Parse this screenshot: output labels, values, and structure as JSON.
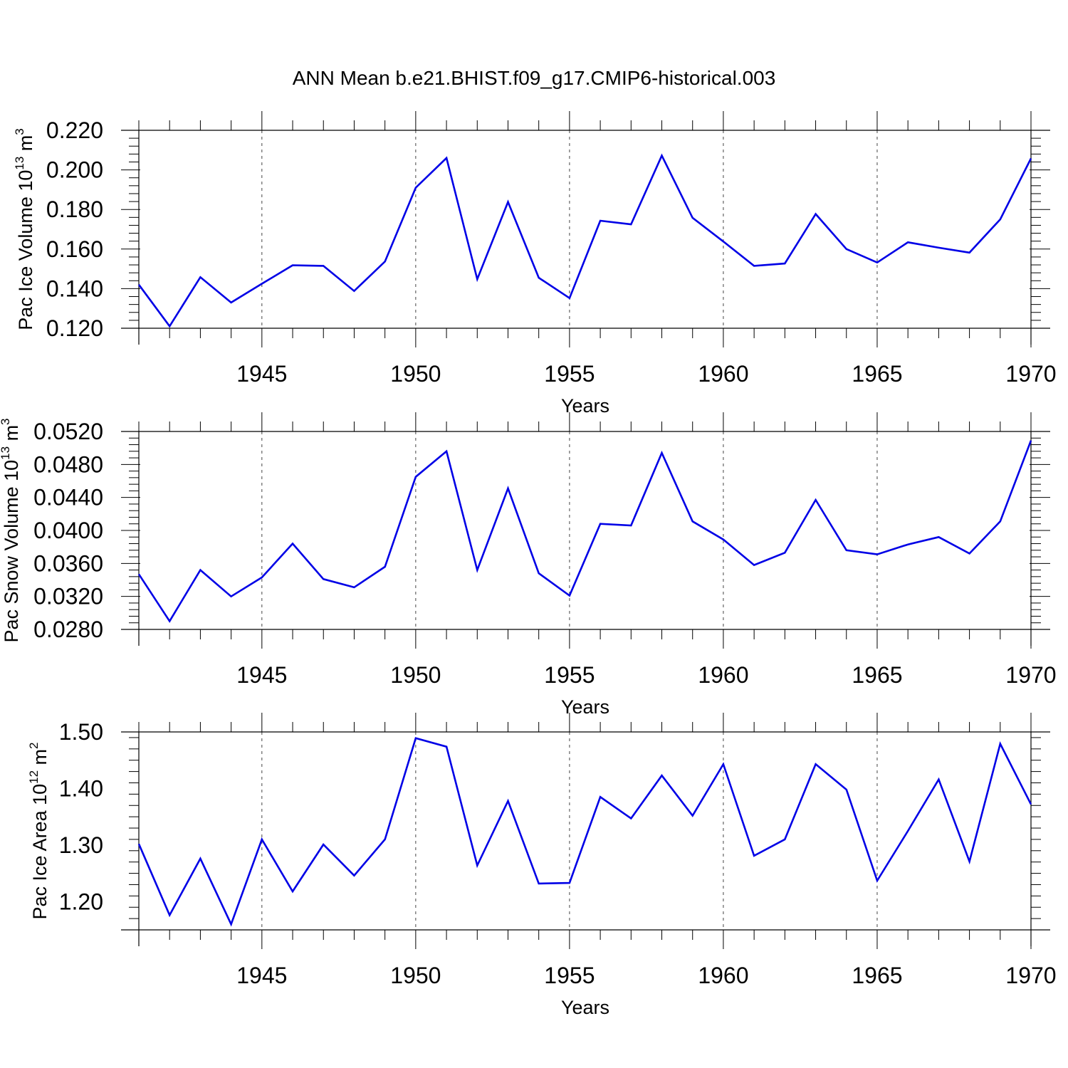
{
  "title": "ANN Mean b.e21.BHIST.f09_g17.CMIP6-historical.003",
  "colors": {
    "line": "#0000e6",
    "axis": "#000000",
    "grid": "#444444",
    "background": "#ffffff"
  },
  "chart_data": [
    {
      "type": "line",
      "ylabel": "Pac Ice Volume 10",
      "ylabel_exponent": "13",
      "ylabel_unit": " m",
      "ylabel_unit_exponent": "3",
      "xlabel": "Years",
      "xlim": [
        1941,
        1970
      ],
      "ylim": [
        0.12,
        0.22
      ],
      "ymin_data": 0.12,
      "yticks": [
        0.12,
        0.14,
        0.16,
        0.18,
        0.2,
        0.22
      ],
      "ytick_labels": [
        "0.120",
        "0.140",
        "0.160",
        "0.180",
        "0.200",
        "0.220"
      ],
      "xticks": [
        1945,
        1950,
        1955,
        1960,
        1965,
        1970
      ],
      "xtick_labels": [
        "1945",
        "1950",
        "1955",
        "1960",
        "1965",
        "1970"
      ],
      "grid": "x-dashed",
      "series": [
        {
          "name": "Pac Ice Volume",
          "x": [
            1941,
            1942,
            1943,
            1944,
            1945,
            1946,
            1947,
            1948,
            1949,
            1950,
            1951,
            1952,
            1953,
            1954,
            1955,
            1956,
            1957,
            1958,
            1959,
            1960,
            1961,
            1962,
            1963,
            1964,
            1965,
            1966,
            1967,
            1968,
            1969,
            1970
          ],
          "values": [
            0.142,
            0.121,
            0.1458,
            0.133,
            0.1425,
            0.1518,
            0.1515,
            0.1388,
            0.1537,
            0.191,
            0.206,
            0.1448,
            0.1838,
            0.1455,
            0.1352,
            0.1743,
            0.1725,
            0.2072,
            0.1758,
            0.1638,
            0.1515,
            0.1527,
            0.1777,
            0.16,
            0.1532,
            0.1634,
            0.1607,
            0.1582,
            0.175,
            0.2058
          ]
        }
      ]
    },
    {
      "type": "line",
      "ylabel": "Pac Snow Volume 10",
      "ylabel_exponent": "13",
      "ylabel_unit": " m",
      "ylabel_unit_exponent": "3",
      "xlabel": "Years",
      "xlim": [
        1941,
        1970
      ],
      "ylim": [
        0.028,
        0.052
      ],
      "yticks": [
        0.028,
        0.032,
        0.036,
        0.04,
        0.044,
        0.048,
        0.052
      ],
      "ytick_labels": [
        "0.0280",
        "0.0320",
        "0.0360",
        "0.0400",
        "0.0440",
        "0.0480",
        "0.0520"
      ],
      "xticks": [
        1945,
        1950,
        1955,
        1960,
        1965,
        1970
      ],
      "xtick_labels": [
        "1945",
        "1950",
        "1955",
        "1960",
        "1965",
        "1970"
      ],
      "grid": "x-dashed",
      "series": [
        {
          "name": "Pac Snow Volume",
          "x": [
            1941,
            1942,
            1943,
            1944,
            1945,
            1946,
            1947,
            1948,
            1949,
            1950,
            1951,
            1952,
            1953,
            1954,
            1955,
            1956,
            1957,
            1958,
            1959,
            1960,
            1961,
            1962,
            1963,
            1964,
            1965,
            1966,
            1967,
            1968,
            1969,
            1970
          ],
          "values": [
            0.0347,
            0.029,
            0.0352,
            0.032,
            0.0343,
            0.0384,
            0.0341,
            0.0331,
            0.0356,
            0.0465,
            0.0496,
            0.0352,
            0.0451,
            0.0348,
            0.0321,
            0.0408,
            0.0406,
            0.0494,
            0.0411,
            0.0389,
            0.0358,
            0.0373,
            0.0437,
            0.0376,
            0.0371,
            0.0383,
            0.0392,
            0.0372,
            0.0411,
            0.0509
          ]
        }
      ]
    },
    {
      "type": "line",
      "ylabel": "Pac Ice Area 10",
      "ylabel_exponent": "12",
      "ylabel_unit": " m",
      "ylabel_unit_exponent": "2",
      "xlabel": "Years",
      "xlim": [
        1941,
        1970
      ],
      "ylim": [
        1.15,
        1.5
      ],
      "yticks": [
        1.2,
        1.3,
        1.4,
        1.5
      ],
      "ytick_labels": [
        "1.20",
        "1.30",
        "1.40",
        "1.50"
      ],
      "xticks": [
        1945,
        1950,
        1955,
        1960,
        1965,
        1970
      ],
      "xtick_labels": [
        "1945",
        "1950",
        "1955",
        "1960",
        "1965",
        "1970"
      ],
      "grid": "x-dashed",
      "series": [
        {
          "name": "Pac Ice Area",
          "x": [
            1941,
            1942,
            1943,
            1944,
            1945,
            1946,
            1947,
            1948,
            1949,
            1950,
            1951,
            1952,
            1953,
            1954,
            1955,
            1956,
            1957,
            1958,
            1959,
            1960,
            1961,
            1962,
            1963,
            1964,
            1965,
            1966,
            1967,
            1968,
            1969,
            1970
          ],
          "values": [
            1.302,
            1.176,
            1.276,
            1.16,
            1.31,
            1.218,
            1.301,
            1.246,
            1.31,
            1.489,
            1.474,
            1.264,
            1.378,
            1.232,
            1.233,
            1.385,
            1.347,
            1.423,
            1.352,
            1.443,
            1.281,
            1.31,
            1.443,
            1.398,
            1.237,
            1.325,
            1.416,
            1.271,
            1.479,
            1.372
          ]
        }
      ]
    }
  ]
}
